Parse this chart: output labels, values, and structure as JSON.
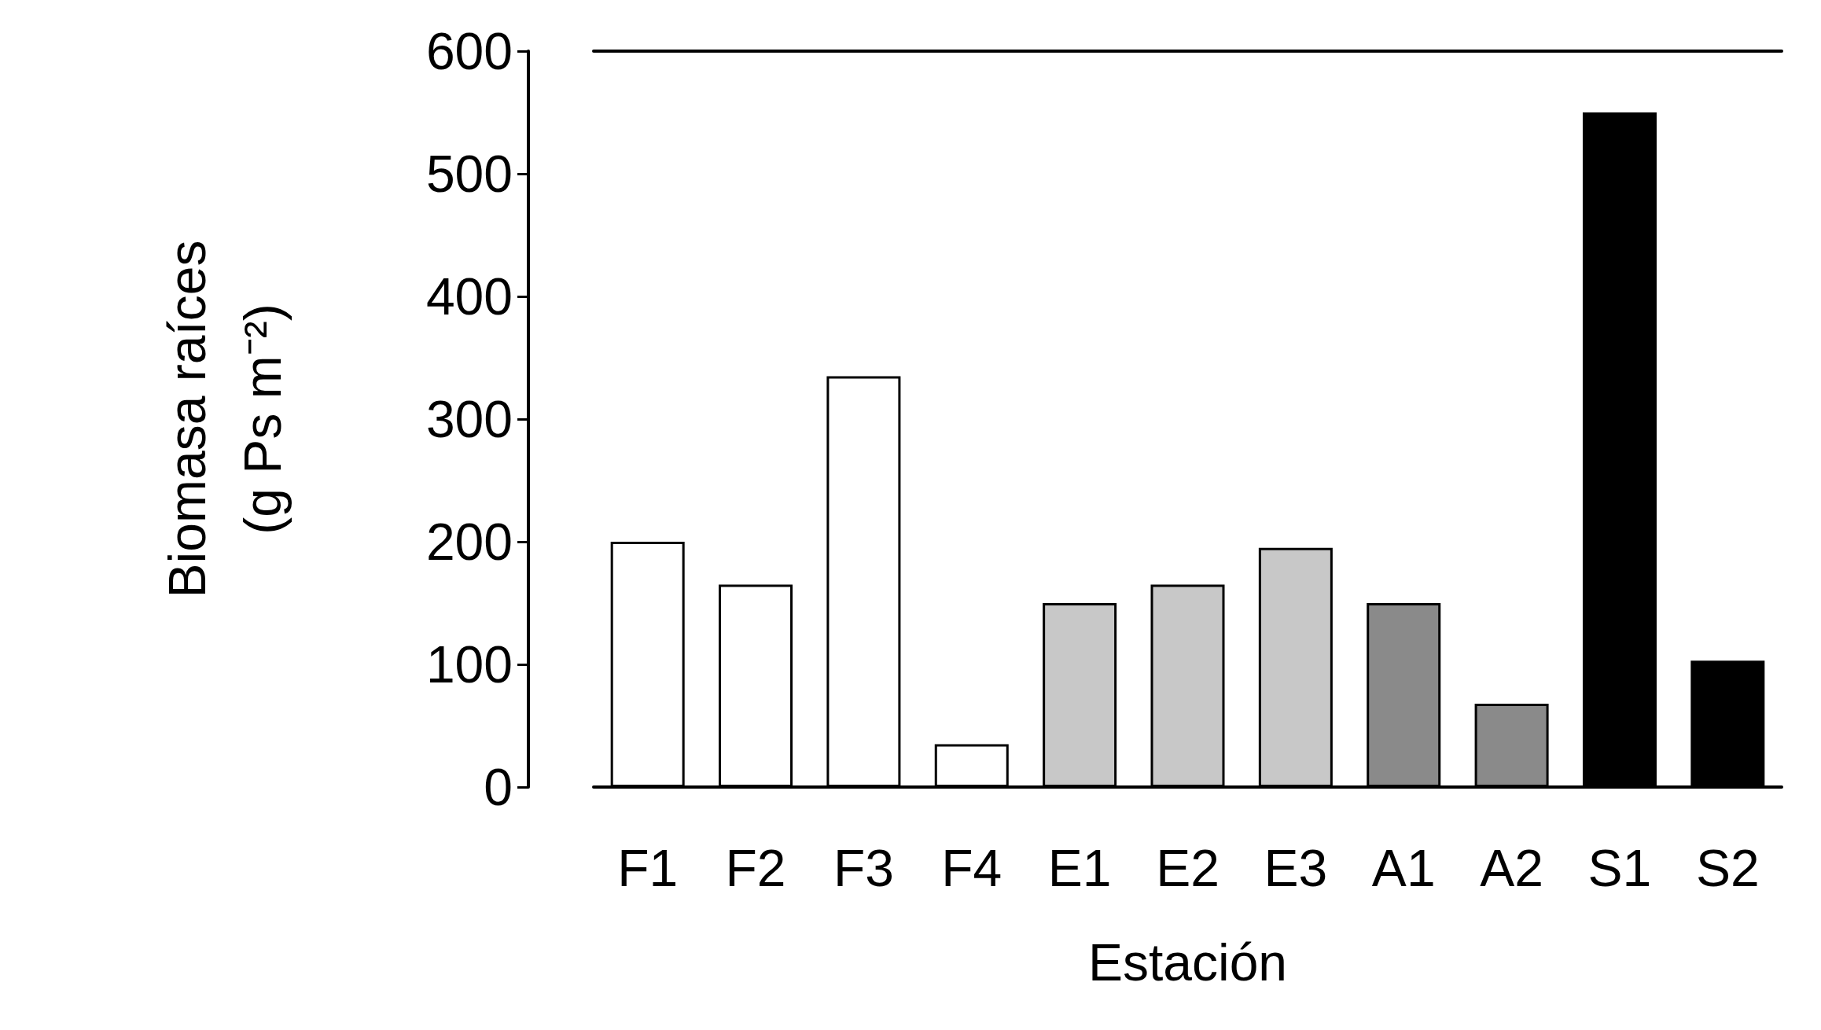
{
  "chart_data": {
    "type": "bar",
    "xlabel": "Estación",
    "ylabel": "Biomasa raíces\n(g Ps m⁻²)",
    "categories": [
      "F1",
      "F2",
      "F3",
      "F4",
      "E1",
      "E2",
      "E3",
      "A1",
      "A2",
      "S1",
      "S2"
    ],
    "values": [
      200,
      165,
      335,
      35,
      150,
      165,
      195,
      150,
      68,
      550,
      103
    ],
    "colors": [
      "#ffffff",
      "#ffffff",
      "#ffffff",
      "#ffffff",
      "#c8c8c8",
      "#c8c8c8",
      "#c8c8c8",
      "#8a8a8a",
      "#8a8a8a",
      "#000000",
      "#000000"
    ],
    "ylim": [
      0,
      600
    ],
    "yticks": [
      0,
      100,
      200,
      300,
      400,
      500,
      600
    ],
    "grid": false
  }
}
